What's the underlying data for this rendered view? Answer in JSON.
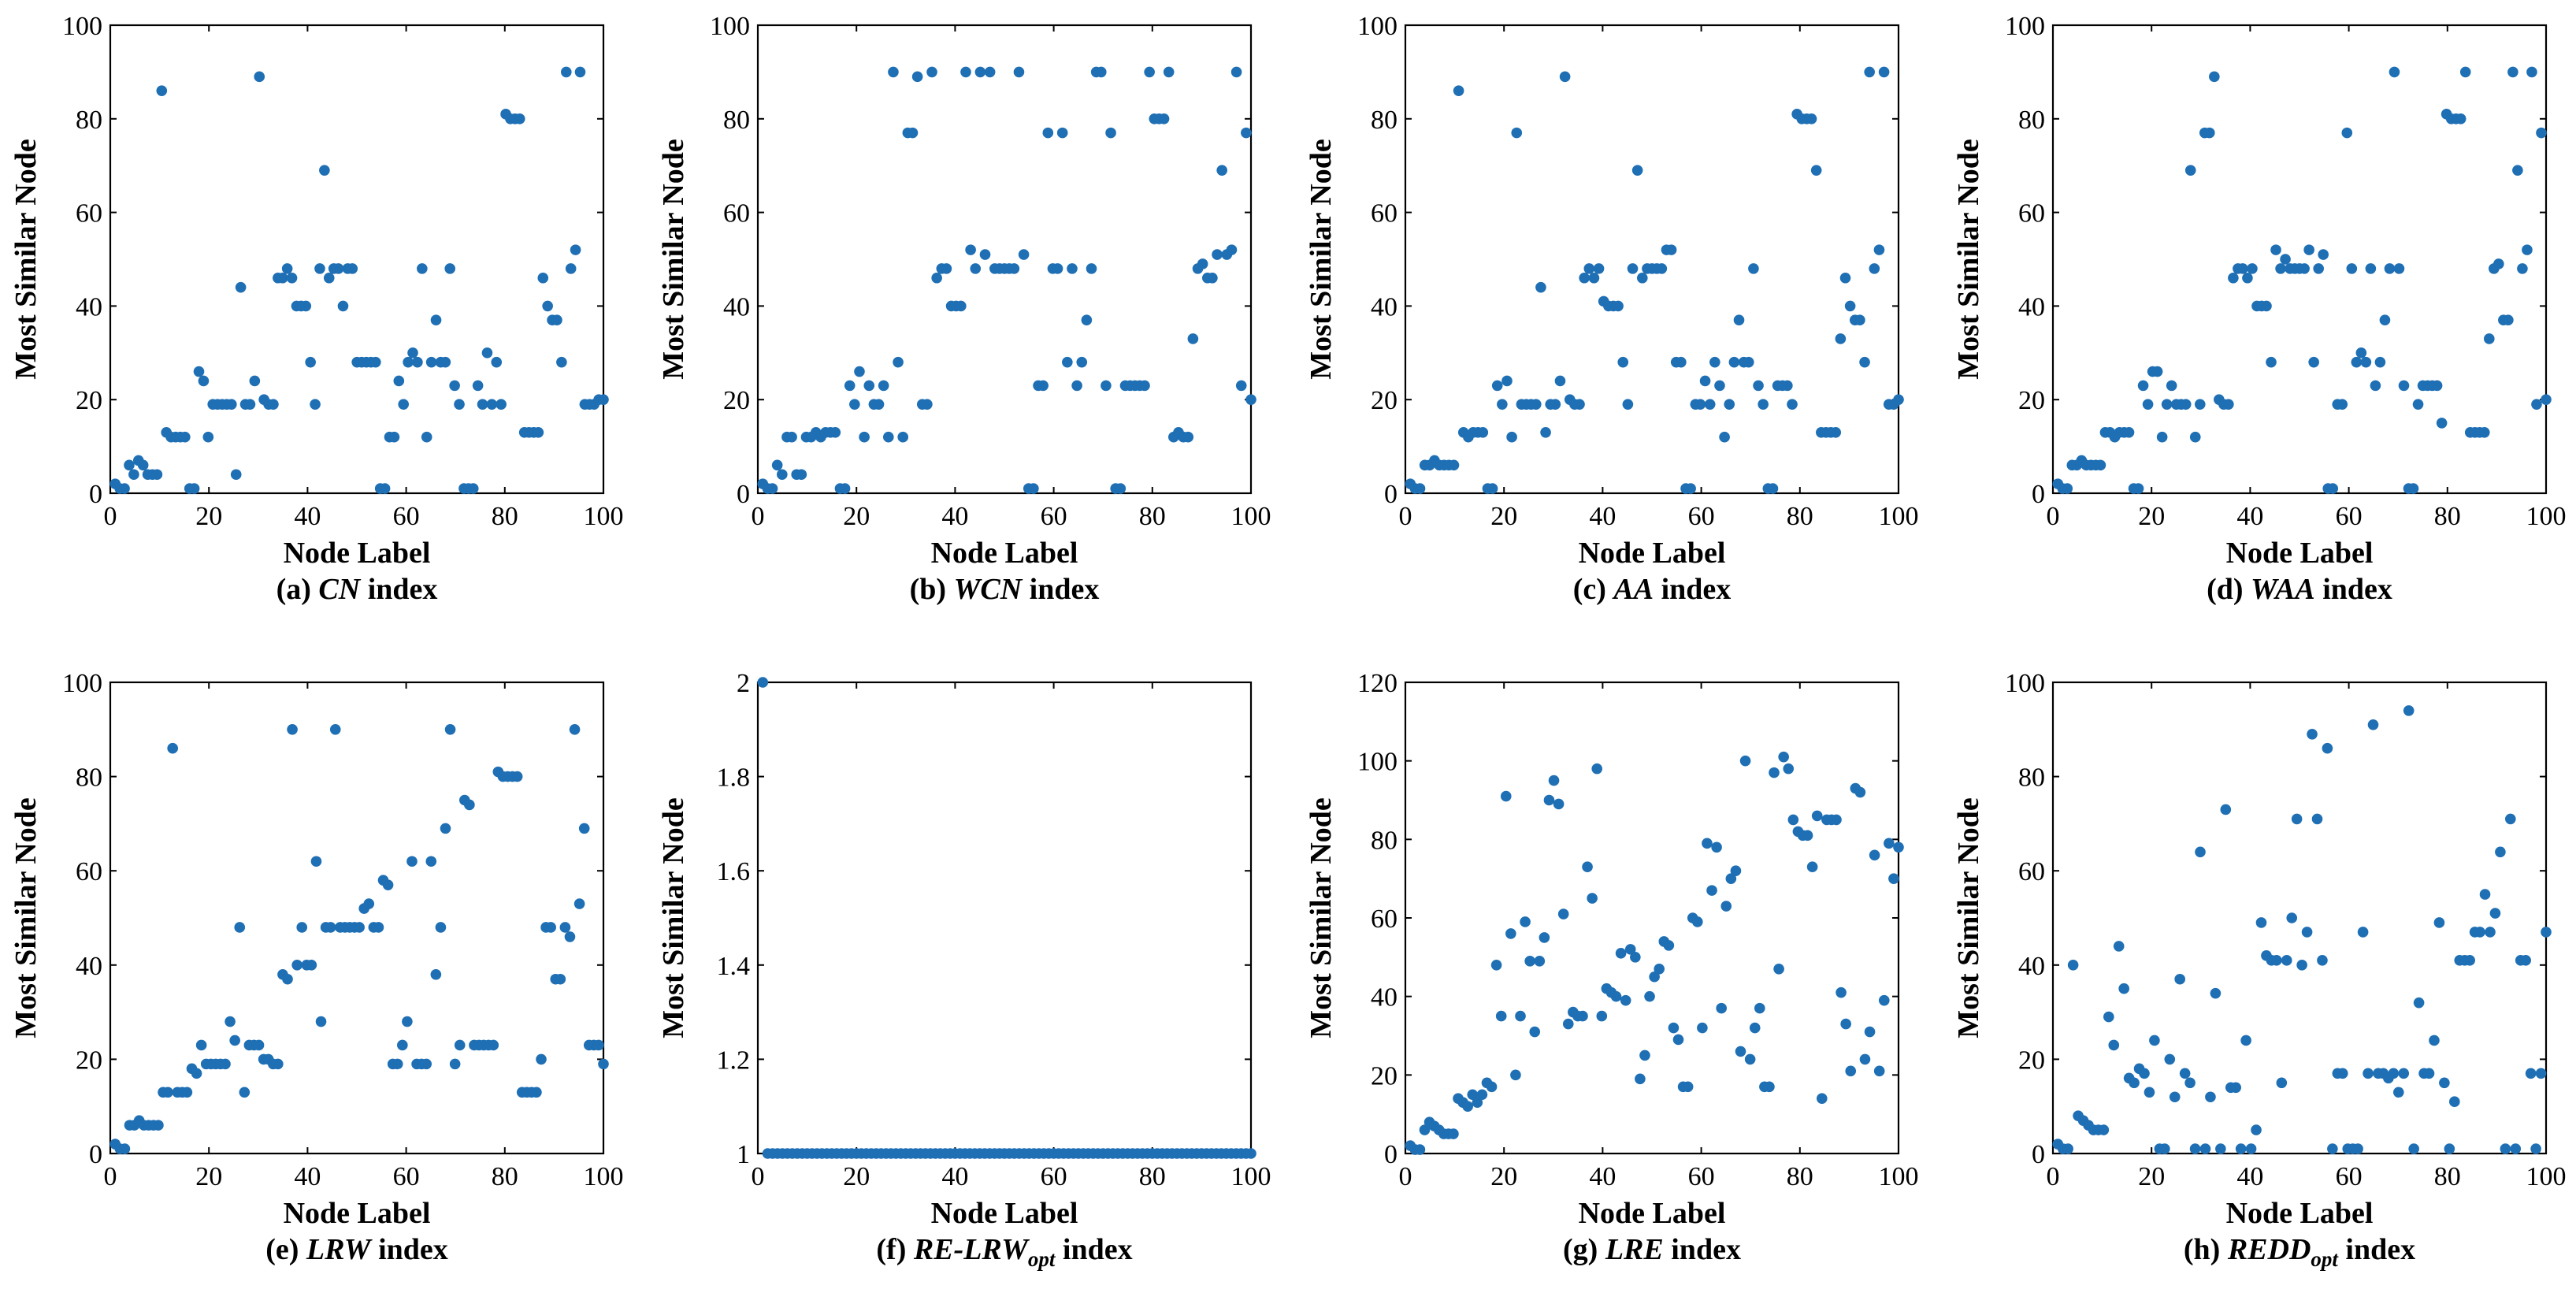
{
  "figure": {
    "marker_color": "#1f6fb4",
    "axis_color": "#000000",
    "background": "#ffffff"
  },
  "chart_data": [
    {
      "type": "scatter",
      "caption_prefix": "(a) ",
      "caption_name": "CN",
      "caption_sub": "",
      "caption_suffix": " index",
      "xlabel": "Node Label",
      "ylabel": "Most Similar Node",
      "xlim": [
        0,
        100
      ],
      "ylim": [
        0,
        100
      ],
      "xticks": [
        0,
        20,
        40,
        60,
        80,
        100
      ],
      "yticks": [
        0,
        20,
        40,
        60,
        80,
        100
      ],
      "y": [
        2,
        1,
        1,
        6,
        4,
        7,
        6,
        4,
        4,
        4,
        86,
        13,
        12,
        12,
        12,
        12,
        1,
        1,
        26,
        24,
        12,
        19,
        19,
        19,
        19,
        19,
        4,
        44,
        19,
        19,
        24,
        89,
        20,
        19,
        19,
        46,
        46,
        48,
        46,
        40,
        40,
        40,
        28,
        19,
        48,
        69,
        46,
        48,
        48,
        40,
        48,
        48,
        28,
        28,
        28,
        28,
        28,
        1,
        1,
        12,
        12,
        24,
        19,
        28,
        30,
        28,
        48,
        12,
        28,
        37,
        28,
        28,
        48,
        23,
        19,
        1,
        1,
        1,
        23,
        19,
        30,
        19,
        28,
        19,
        81,
        80,
        80,
        80,
        13,
        13,
        13,
        13,
        46,
        40,
        37,
        37,
        28,
        90,
        48,
        52,
        90,
        19,
        19,
        19,
        20,
        20
      ]
    },
    {
      "type": "scatter",
      "caption_prefix": "(b) ",
      "caption_name": "WCN",
      "caption_sub": "",
      "caption_suffix": " index",
      "xlabel": "Node Label",
      "ylabel": "Most Similar Node",
      "xlim": [
        0,
        100
      ],
      "ylim": [
        0,
        100
      ],
      "xticks": [
        0,
        20,
        40,
        60,
        80,
        100
      ],
      "yticks": [
        0,
        20,
        40,
        60,
        80,
        100
      ],
      "y": [
        2,
        1,
        1,
        6,
        4,
        12,
        12,
        4,
        4,
        12,
        12,
        13,
        12,
        13,
        13,
        13,
        1,
        1,
        23,
        19,
        26,
        12,
        23,
        19,
        19,
        23,
        12,
        90,
        28,
        12,
        77,
        77,
        89,
        19,
        19,
        90,
        46,
        48,
        48,
        40,
        40,
        40,
        90,
        52,
        48,
        90,
        51,
        90,
        48,
        48,
        48,
        48,
        48,
        90,
        51,
        1,
        1,
        23,
        23,
        77,
        48,
        48,
        77,
        28,
        48,
        23,
        28,
        37,
        48,
        90,
        90,
        23,
        77,
        1,
        1,
        23,
        23,
        23,
        23,
        23,
        90,
        80,
        80,
        80,
        90,
        12,
        13,
        12,
        12,
        33,
        48,
        49,
        46,
        46,
        51,
        69,
        51,
        52,
        90,
        23,
        77,
        20
      ]
    },
    {
      "type": "scatter",
      "caption_prefix": "(c) ",
      "caption_name": "AA",
      "caption_sub": "",
      "caption_suffix": " index",
      "xlabel": "Node Label",
      "ylabel": "Most Similar Node",
      "xlim": [
        0,
        100
      ],
      "ylim": [
        0,
        100
      ],
      "xticks": [
        0,
        20,
        40,
        60,
        80,
        100
      ],
      "yticks": [
        0,
        20,
        40,
        60,
        80,
        100
      ],
      "y": [
        2,
        1,
        1,
        6,
        6,
        7,
        6,
        6,
        6,
        6,
        86,
        13,
        12,
        13,
        13,
        13,
        1,
        1,
        23,
        19,
        24,
        12,
        77,
        19,
        19,
        19,
        19,
        44,
        13,
        19,
        19,
        24,
        89,
        20,
        19,
        19,
        46,
        48,
        46,
        48,
        41,
        40,
        40,
        40,
        28,
        19,
        48,
        69,
        46,
        48,
        48,
        48,
        48,
        52,
        52,
        28,
        28,
        1,
        1,
        19,
        19,
        24,
        19,
        28,
        23,
        12,
        19,
        28,
        37,
        28,
        28,
        48,
        23,
        19,
        1,
        1,
        23,
        23,
        23,
        19,
        81,
        80,
        80,
        80,
        69,
        13,
        13,
        13,
        13,
        33,
        46,
        40,
        37,
        37,
        28,
        90,
        48,
        52,
        90,
        19,
        19,
        20
      ]
    },
    {
      "type": "scatter",
      "caption_prefix": "(d) ",
      "caption_name": "WAA",
      "caption_sub": "",
      "caption_suffix": " index",
      "xlabel": "Node Label",
      "ylabel": "Most Similar Node",
      "xlim": [
        0,
        100
      ],
      "ylim": [
        0,
        100
      ],
      "xticks": [
        0,
        20,
        40,
        60,
        80,
        100
      ],
      "yticks": [
        0,
        20,
        40,
        60,
        80,
        100
      ],
      "y": [
        2,
        1,
        1,
        6,
        6,
        7,
        6,
        6,
        6,
        6,
        13,
        13,
        12,
        13,
        13,
        13,
        1,
        1,
        23,
        19,
        26,
        26,
        12,
        19,
        23,
        19,
        19,
        19,
        69,
        12,
        19,
        77,
        77,
        89,
        20,
        19,
        19,
        46,
        48,
        48,
        46,
        48,
        40,
        40,
        40,
        28,
        52,
        48,
        50,
        48,
        48,
        48,
        48,
        52,
        28,
        48,
        51,
        1,
        1,
        19,
        19,
        77,
        48,
        28,
        30,
        28,
        48,
        23,
        28,
        37,
        48,
        90,
        48,
        23,
        1,
        1,
        19,
        23,
        23,
        23,
        23,
        15,
        81,
        80,
        80,
        80,
        90,
        13,
        13,
        13,
        13,
        33,
        48,
        49,
        37,
        37,
        90,
        69,
        48,
        52,
        90,
        19,
        77,
        20
      ]
    },
    {
      "type": "scatter",
      "caption_prefix": "(e) ",
      "caption_name": "LRW",
      "caption_sub": "",
      "caption_suffix": " index",
      "xlabel": "Node Label",
      "ylabel": "Most Similar Node",
      "xlim": [
        0,
        100
      ],
      "ylim": [
        0,
        100
      ],
      "xticks": [
        0,
        20,
        40,
        60,
        80,
        100
      ],
      "yticks": [
        0,
        20,
        40,
        60,
        80,
        100
      ],
      "y": [
        2,
        1,
        1,
        6,
        6,
        7,
        6,
        6,
        6,
        6,
        13,
        13,
        86,
        13,
        13,
        13,
        18,
        17,
        23,
        19,
        19,
        19,
        19,
        19,
        28,
        24,
        48,
        13,
        23,
        23,
        23,
        20,
        20,
        19,
        19,
        38,
        37,
        90,
        40,
        48,
        40,
        40,
        62,
        28,
        48,
        48,
        90,
        48,
        48,
        48,
        48,
        48,
        52,
        53,
        48,
        48,
        58,
        57,
        19,
        19,
        23,
        28,
        62,
        19,
        19,
        19,
        62,
        38,
        48,
        69,
        90,
        19,
        23,
        75,
        74,
        23,
        23,
        23,
        23,
        23,
        81,
        80,
        80,
        80,
        80,
        13,
        13,
        13,
        13,
        20,
        48,
        48,
        37,
        37,
        48,
        46,
        90,
        53,
        69,
        23,
        23,
        23,
        19
      ]
    },
    {
      "type": "scatter",
      "caption_prefix": "(f) ",
      "caption_name": "RE-LRW",
      "caption_sub": "opt",
      "caption_suffix": " index",
      "xlabel": "Node Label",
      "ylabel": "Most Similar Node",
      "xlim": [
        0,
        100
      ],
      "ylim": [
        1,
        2
      ],
      "xticks": [
        0,
        20,
        40,
        60,
        80,
        100
      ],
      "yticks": [
        1,
        1.2,
        1.4,
        1.6,
        1.8,
        2
      ],
      "x": [
        1,
        2,
        3,
        4,
        5,
        6,
        7,
        8,
        9,
        10,
        11,
        12,
        13,
        14,
        15,
        16,
        17,
        18,
        19,
        20,
        21,
        22,
        23,
        24,
        25,
        26,
        27,
        28,
        29,
        30,
        31,
        32,
        33,
        34,
        35,
        36,
        37,
        38,
        39,
        40,
        41,
        42,
        43,
        44,
        45,
        46,
        47,
        48,
        49,
        50,
        51,
        52,
        53,
        54,
        55,
        56,
        57,
        58,
        59,
        60,
        61,
        62,
        63,
        64,
        65,
        66,
        67,
        68,
        69,
        70,
        71,
        72,
        73,
        74,
        75,
        76,
        77,
        78,
        79,
        80,
        81,
        82,
        83,
        84,
        85,
        86,
        87,
        88,
        89,
        90,
        91,
        92,
        93,
        94,
        95,
        96,
        97,
        98,
        99,
        100
      ],
      "y": [
        2,
        1,
        1,
        1,
        1,
        1,
        1,
        1,
        1,
        1,
        1,
        1,
        1,
        1,
        1,
        1,
        1,
        1,
        1,
        1,
        1,
        1,
        1,
        1,
        1,
        1,
        1,
        1,
        1,
        1,
        1,
        1,
        1,
        1,
        1,
        1,
        1,
        1,
        1,
        1,
        1,
        1,
        1,
        1,
        1,
        1,
        1,
        1,
        1,
        1,
        1,
        1,
        1,
        1,
        1,
        1,
        1,
        1,
        1,
        1,
        1,
        1,
        1,
        1,
        1,
        1,
        1,
        1,
        1,
        1,
        1,
        1,
        1,
        1,
        1,
        1,
        1,
        1,
        1,
        1,
        1,
        1,
        1,
        1,
        1,
        1,
        1,
        1,
        1,
        1,
        1,
        1,
        1,
        1,
        1,
        1,
        1,
        1,
        1,
        1
      ]
    },
    {
      "type": "scatter",
      "caption_prefix": "(g) ",
      "caption_name": "LRE",
      "caption_sub": "",
      "caption_suffix": " index",
      "xlabel": "Node Label",
      "ylabel": "Most Similar Node",
      "xlim": [
        0,
        100
      ],
      "ylim": [
        0,
        120
      ],
      "xticks": [
        0,
        20,
        40,
        60,
        80,
        100
      ],
      "yticks": [
        0,
        20,
        40,
        60,
        80,
        100,
        120
      ],
      "y": [
        2,
        1,
        1,
        6,
        8,
        7,
        6,
        5,
        5,
        5,
        14,
        13,
        12,
        15,
        13,
        15,
        18,
        17,
        48,
        35,
        91,
        56,
        20,
        35,
        59,
        49,
        31,
        49,
        55,
        90,
        95,
        89,
        61,
        33,
        36,
        35,
        35,
        73,
        65,
        98,
        35,
        42,
        41,
        40,
        51,
        39,
        52,
        50,
        19,
        25,
        40,
        45,
        47,
        54,
        53,
        32,
        29,
        17,
        17,
        60,
        59,
        32,
        79,
        67,
        78,
        37,
        63,
        70,
        72,
        26,
        100,
        24,
        32,
        37,
        17,
        17,
        97,
        47,
        101,
        98,
        85,
        82,
        81,
        81,
        73,
        86,
        14,
        85,
        85,
        85,
        41,
        33,
        21,
        93,
        92,
        24,
        31,
        76,
        21,
        39,
        79,
        70,
        78
      ]
    },
    {
      "type": "scatter",
      "caption_prefix": "(h) ",
      "caption_name": "REDD",
      "caption_sub": "opt",
      "caption_suffix": " index",
      "xlabel": "Node Label",
      "ylabel": "Most Similar Node",
      "xlim": [
        0,
        100
      ],
      "ylim": [
        0,
        100
      ],
      "xticks": [
        0,
        20,
        40,
        60,
        80,
        100
      ],
      "yticks": [
        0,
        20,
        40,
        60,
        80,
        100
      ],
      "y": [
        2,
        1,
        1,
        40,
        8,
        7,
        6,
        5,
        5,
        5,
        29,
        23,
        44,
        35,
        16,
        15,
        18,
        17,
        13,
        24,
        1,
        1,
        20,
        12,
        37,
        17,
        15,
        1,
        64,
        1,
        12,
        34,
        1,
        73,
        14,
        14,
        1,
        24,
        1,
        5,
        49,
        42,
        41,
        41,
        15,
        41,
        50,
        71,
        40,
        47,
        89,
        71,
        41,
        86,
        1,
        17,
        17,
        1,
        1,
        1,
        47,
        17,
        91,
        17,
        17,
        16,
        17,
        13,
        17,
        94,
        1,
        32,
        17,
        17,
        24,
        49,
        15,
        1,
        11,
        41,
        41,
        41,
        47,
        47,
        55,
        47,
        51,
        64,
        1,
        71,
        1,
        41,
        41,
        17,
        1,
        17,
        47
      ]
    }
  ]
}
